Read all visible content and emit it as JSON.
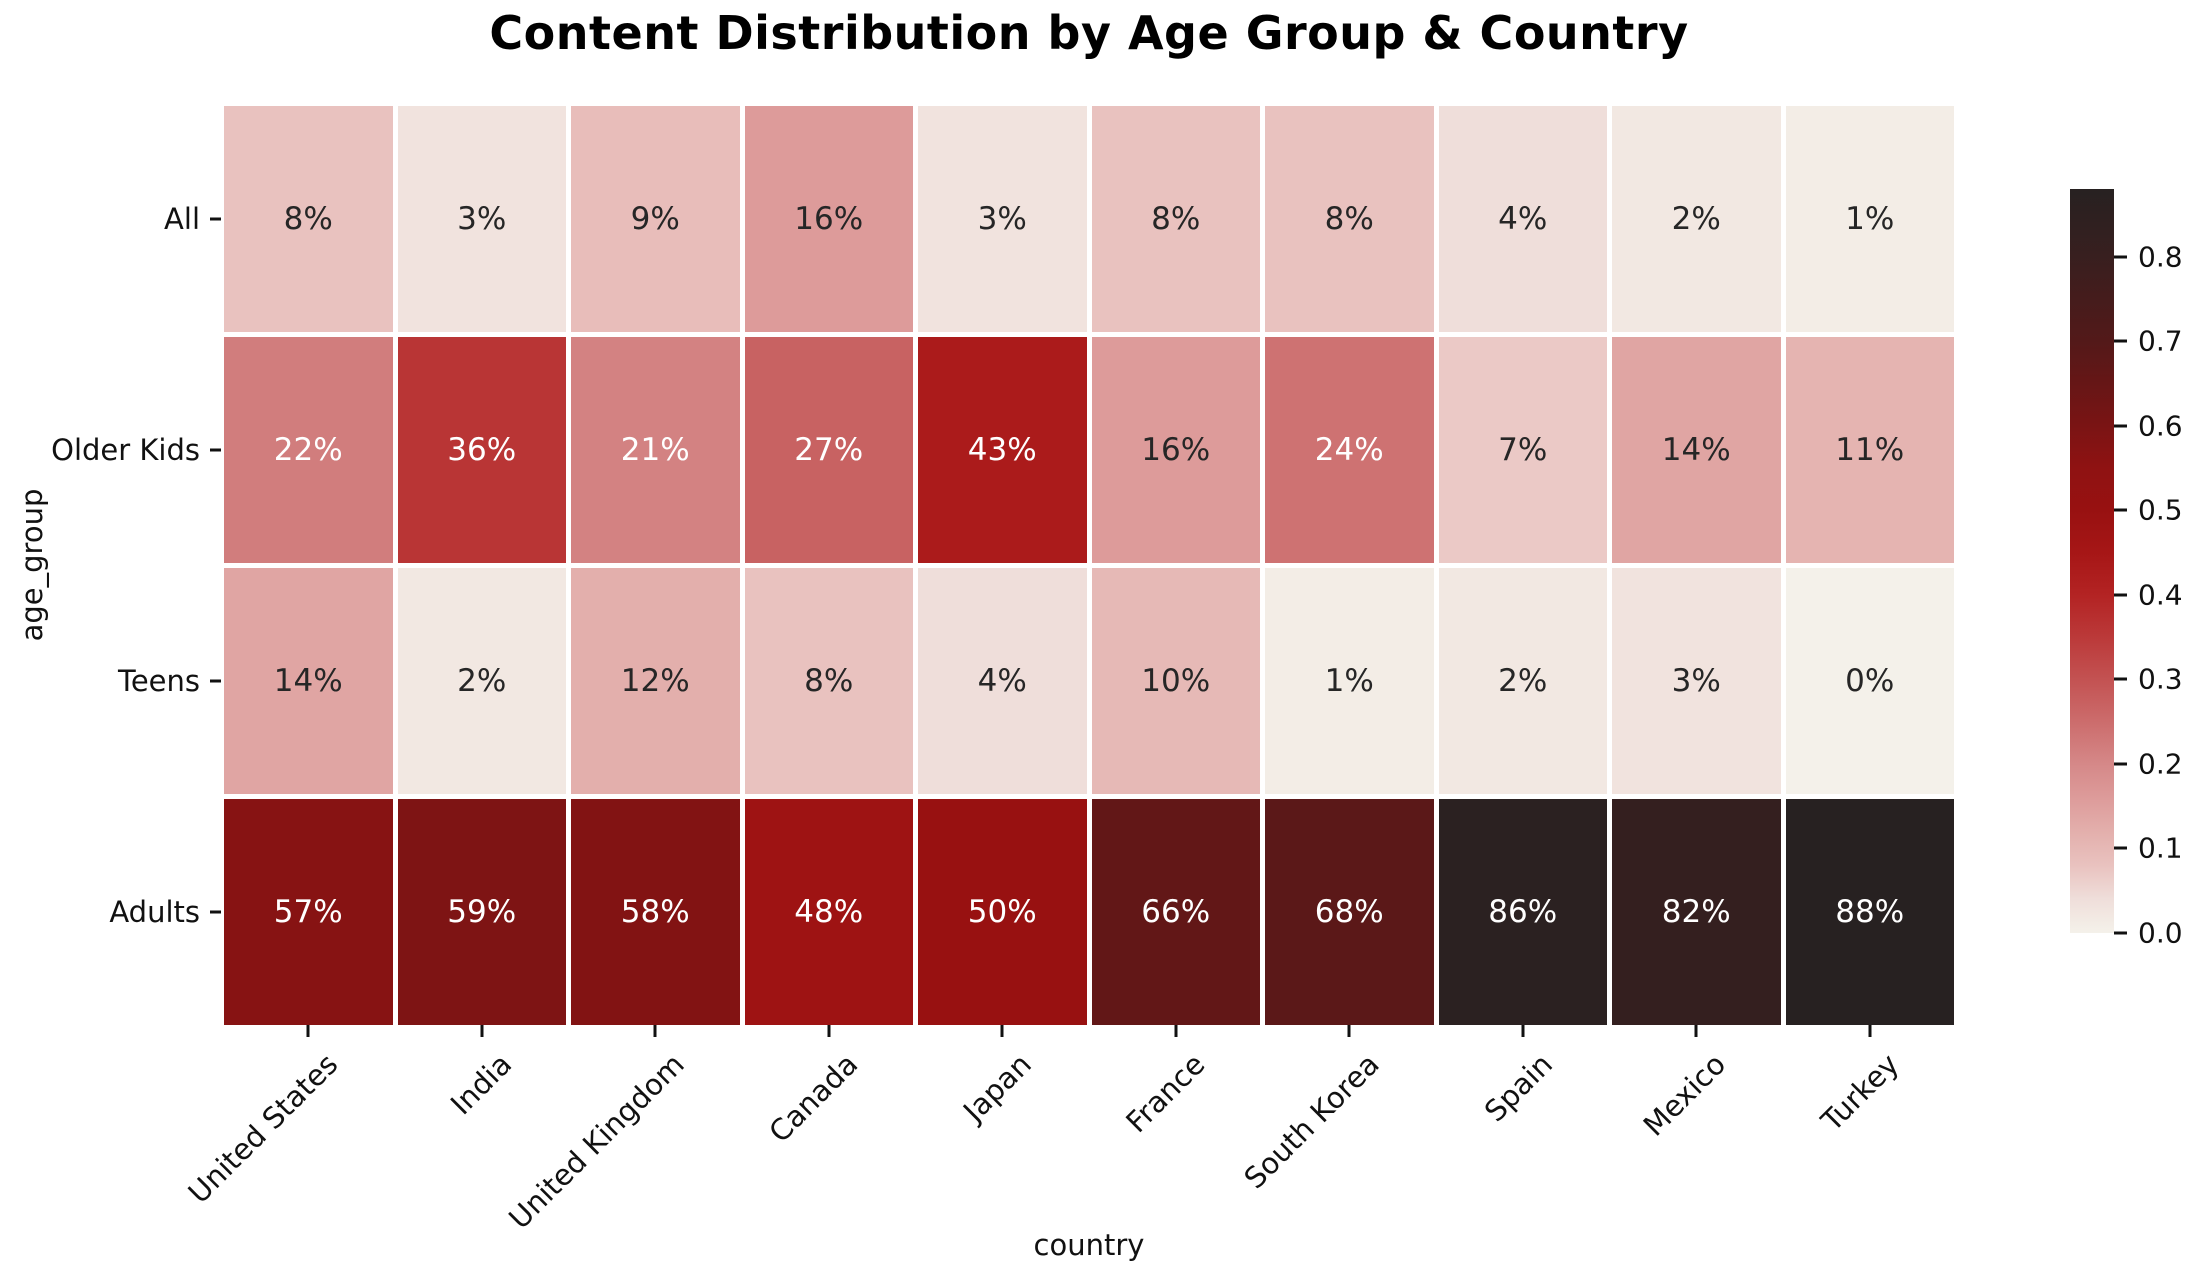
{
  "chart_data": {
    "type": "heatmap",
    "title": "Content Distribution by Age Group & Country",
    "xlabel": "country",
    "ylabel": "age_group",
    "categories_x": [
      "United States",
      "India",
      "United Kingdom",
      "Canada",
      "Japan",
      "France",
      "South Korea",
      "Spain",
      "Mexico",
      "Turkey"
    ],
    "categories_y": [
      "All",
      "Older Kids",
      "Teens",
      "Adults"
    ],
    "values_percent": [
      [
        8,
        3,
        9,
        16,
        3,
        8,
        8,
        4,
        2,
        1
      ],
      [
        22,
        36,
        21,
        27,
        43,
        16,
        24,
        7,
        14,
        11
      ],
      [
        14,
        2,
        12,
        8,
        4,
        10,
        1,
        2,
        3,
        0
      ],
      [
        57,
        59,
        58,
        48,
        50,
        66,
        68,
        86,
        82,
        88
      ]
    ],
    "annotation_format": "{value}%",
    "vmin": 0.0,
    "vmax": 0.88,
    "colorbar_tick_labels": [
      "0.0",
      "0.1",
      "0.2",
      "0.3",
      "0.4",
      "0.5",
      "0.6",
      "0.7",
      "0.8"
    ],
    "colorbar_tick_values": [
      0.0,
      0.1,
      0.2,
      0.3,
      0.4,
      0.5,
      0.6,
      0.7,
      0.8
    ],
    "legend_position": "right-colorbar",
    "grid": "off",
    "cell_gap_color": "#ffffff",
    "annotation_color_dark": "#262626",
    "annotation_color_light": "#ffffff",
    "colorscale": [
      [
        0.0,
        "#f4f1ea"
      ],
      [
        0.02,
        "#f2e8e2"
      ],
      [
        0.04,
        "#efdeda"
      ],
      [
        0.08,
        "#e9c2bf"
      ],
      [
        0.12,
        "#e3afac"
      ],
      [
        0.16,
        "#dd9b9a"
      ],
      [
        0.2,
        "#d58888"
      ],
      [
        0.25,
        "#cc6c6c"
      ],
      [
        0.3,
        "#c35252"
      ],
      [
        0.35,
        "#bb3939"
      ],
      [
        0.4,
        "#b32323"
      ],
      [
        0.45,
        "#a61616"
      ],
      [
        0.5,
        "#981111"
      ],
      [
        0.55,
        "#8f1212"
      ],
      [
        0.6,
        "#7a1414"
      ],
      [
        0.65,
        "#661616"
      ],
      [
        0.7,
        "#531919"
      ],
      [
        0.75,
        "#451c1c"
      ],
      [
        0.8,
        "#381f1f"
      ],
      [
        0.88,
        "#272121"
      ]
    ]
  }
}
